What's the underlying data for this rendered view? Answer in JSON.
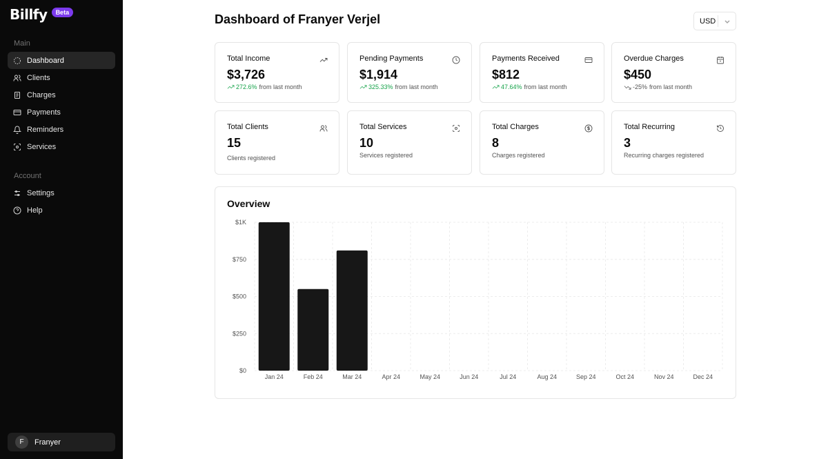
{
  "brand": {
    "name": "Billfy",
    "badge": "Beta"
  },
  "sidebar": {
    "main_label": "Main",
    "main_items": [
      {
        "label": "Dashboard",
        "icon": "loader-icon",
        "active": true
      },
      {
        "label": "Clients",
        "icon": "users-icon"
      },
      {
        "label": "Charges",
        "icon": "receipt-icon"
      },
      {
        "label": "Payments",
        "icon": "credit-card-icon"
      },
      {
        "label": "Reminders",
        "icon": "bell-icon"
      },
      {
        "label": "Services",
        "icon": "scan-icon"
      }
    ],
    "account_label": "Account",
    "account_items": [
      {
        "label": "Settings",
        "icon": "sliders-icon"
      },
      {
        "label": "Help",
        "icon": "help-circle-icon"
      }
    ],
    "user": {
      "initial": "F",
      "name": "Franyer"
    }
  },
  "header": {
    "title": "Dashboard of Franyer Verjel",
    "currency": "USD"
  },
  "stats_row1": [
    {
      "title": "Total Income",
      "value": "$3,726",
      "change": "272.6%",
      "suffix": "from last month",
      "trend": "up",
      "icon": "trending-up-icon"
    },
    {
      "title": "Pending Payments",
      "value": "$1,914",
      "change": "325.33%",
      "suffix": "from last month",
      "trend": "up",
      "icon": "clock-icon"
    },
    {
      "title": "Payments Received",
      "value": "$812",
      "change": "47.64%",
      "suffix": "from last month",
      "trend": "up",
      "icon": "credit-card-icon"
    },
    {
      "title": "Overdue Charges",
      "value": "$450",
      "change": "-25%",
      "suffix": "from last month",
      "trend": "down",
      "icon": "calendar-icon"
    }
  ],
  "stats_row2": [
    {
      "title": "Total Clients",
      "value": "15",
      "sub": "Clients registered",
      "icon": "users-icon"
    },
    {
      "title": "Total Services",
      "value": "10",
      "sub": "Services registered",
      "icon": "scan-icon"
    },
    {
      "title": "Total Charges",
      "value": "8",
      "sub": "Charges registered",
      "icon": "dollar-circle-icon"
    },
    {
      "title": "Total Recurring",
      "value": "3",
      "sub": "Recurring charges registered",
      "icon": "history-icon"
    }
  ],
  "overview": {
    "title": "Overview"
  },
  "chart_data": {
    "type": "bar",
    "title": "Overview",
    "categories": [
      "Jan 24",
      "Feb 24",
      "Mar 24",
      "Apr 24",
      "May 24",
      "Jun 24",
      "Jul 24",
      "Aug 24",
      "Sep 24",
      "Oct 24",
      "Nov 24",
      "Dec 24"
    ],
    "values": [
      1000,
      550,
      810,
      0,
      0,
      0,
      0,
      0,
      0,
      0,
      0,
      0
    ],
    "ylim": [
      0,
      1000
    ],
    "yticks": [
      0,
      250,
      500,
      750,
      1000
    ],
    "ytick_labels": [
      "$0",
      "$250",
      "$500",
      "$750",
      "$1K"
    ],
    "xlabel": "",
    "ylabel": "",
    "grid": true,
    "bar_color": "#171717"
  }
}
